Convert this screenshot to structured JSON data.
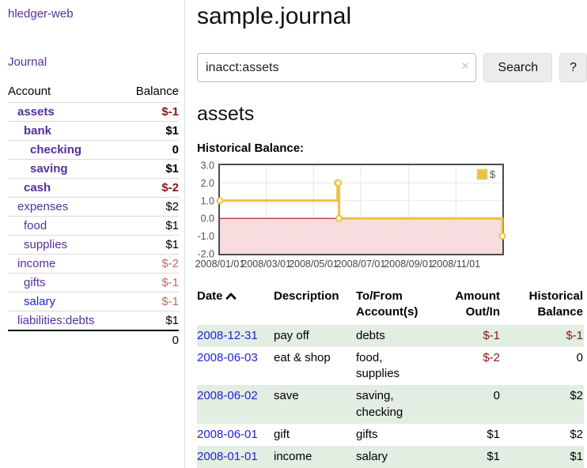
{
  "palette": {
    "link_purple": "#54309c",
    "link_blue": "#2222d2",
    "negative_strong": "#8b1515",
    "negative_soft": "#c46868",
    "row_green": "#e2eee2",
    "series_gold": "#edc240",
    "negative_region_pink": "#f9dcde",
    "zero_line_red": "#8b0000"
  },
  "sidebar": {
    "app_title": "hledger-web",
    "journal_link": "Journal",
    "accounts": {
      "header_account": "Account",
      "header_balance": "Balance",
      "rows": [
        {
          "name": "assets",
          "depth": 1,
          "emphasis": true,
          "balance": "$-1",
          "balance_negative": true
        },
        {
          "name": "bank",
          "depth": 2,
          "emphasis": true,
          "balance": "$1",
          "balance_negative": false
        },
        {
          "name": "checking",
          "depth": 3,
          "emphasis": true,
          "balance": "0",
          "balance_negative": false
        },
        {
          "name": "saving",
          "depth": 3,
          "emphasis": true,
          "balance": "$1",
          "balance_negative": false
        },
        {
          "name": "cash",
          "depth": 2,
          "emphasis": true,
          "balance": "$-2",
          "balance_negative": true
        },
        {
          "name": "expenses",
          "depth": 1,
          "emphasis": false,
          "balance": "$2",
          "balance_negative": false
        },
        {
          "name": "food",
          "depth": 2,
          "emphasis": false,
          "balance": "$1",
          "balance_negative": false
        },
        {
          "name": "supplies",
          "depth": 2,
          "emphasis": false,
          "balance": "$1",
          "balance_negative": false
        },
        {
          "name": "income",
          "depth": 1,
          "emphasis": false,
          "balance": "$-2",
          "balance_negative": true
        },
        {
          "name": "gifts",
          "depth": 2,
          "emphasis": false,
          "balance": "$-1",
          "balance_negative": true
        },
        {
          "name": "salary",
          "depth": 2,
          "emphasis": false,
          "link_color": "blue",
          "balance": "$-1",
          "balance_negative": true
        },
        {
          "name": "liabilities:debts",
          "depth": 1,
          "emphasis": false,
          "balance": "$1",
          "balance_negative": false
        }
      ],
      "total": "0"
    }
  },
  "main": {
    "title": "sample.journal",
    "search": {
      "value": "inacct:assets",
      "clear_icon": "×",
      "button_label": "Search",
      "help_label": "?"
    },
    "account_heading": "assets",
    "chart_label": "Historical Balance:"
  },
  "chart_data": {
    "type": "line",
    "title": "Historical Balance:",
    "step": true,
    "xlim": [
      "2008-01-01",
      "2008-12-31"
    ],
    "ylim": [
      -2,
      3
    ],
    "yticks": [
      {
        "label": "3.0",
        "value": 3
      },
      {
        "label": "2.0",
        "value": 2
      },
      {
        "label": "1.0",
        "value": 1
      },
      {
        "label": "0.0",
        "value": 0
      },
      {
        "label": "-1.0",
        "value": -1
      },
      {
        "label": "-2.0",
        "value": -2
      }
    ],
    "xticks": [
      {
        "label": "2008/01/01",
        "date": "2008-01-01"
      },
      {
        "label": "2008/03/01",
        "date": "2008-03-01"
      },
      {
        "label": "2008/05/01",
        "date": "2008-05-01"
      },
      {
        "label": "2008/07/01",
        "date": "2008-07-01"
      },
      {
        "label": "2008/09/01",
        "date": "2008-09-01"
      },
      {
        "label": "2008/11/01",
        "date": "2008-11-01"
      }
    ],
    "grid": true,
    "legend_position": "top-right",
    "series": [
      {
        "name": "$",
        "color": "#edc240",
        "points": [
          [
            "2008-01-01",
            1
          ],
          [
            "2008-06-01",
            2
          ],
          [
            "2008-06-02",
            2
          ],
          [
            "2008-06-03",
            0
          ],
          [
            "2008-12-31",
            -1
          ]
        ]
      }
    ],
    "negative_region_color": "#f9dcde",
    "zero_line_color": "#8b0000"
  },
  "register": {
    "columns": [
      "Date",
      "Description",
      "To/From Account(s)",
      "Amount Out/In",
      "Historical Balance"
    ],
    "sort_icon": "chevron-up",
    "rows": [
      {
        "date": "2008-12-31",
        "description": "pay off",
        "accounts": "debts",
        "amount": "$-1",
        "amount_negative": true,
        "balance": "$-1",
        "balance_negative": true
      },
      {
        "date": "2008-06-03",
        "description": "eat & shop",
        "accounts": "food, supplies",
        "amount": "$-2",
        "amount_negative": true,
        "balance": "0",
        "balance_negative": false
      },
      {
        "date": "2008-06-02",
        "description": "save",
        "accounts": "saving, checking",
        "amount": "0",
        "amount_negative": false,
        "balance": "$2",
        "balance_negative": false
      },
      {
        "date": "2008-06-01",
        "description": "gift",
        "accounts": "gifts",
        "amount": "$1",
        "amount_negative": false,
        "balance": "$2",
        "balance_negative": false
      },
      {
        "date": "2008-01-01",
        "description": "income",
        "accounts": "salary",
        "amount": "$1",
        "amount_negative": false,
        "balance": "$1",
        "balance_negative": false
      }
    ]
  }
}
